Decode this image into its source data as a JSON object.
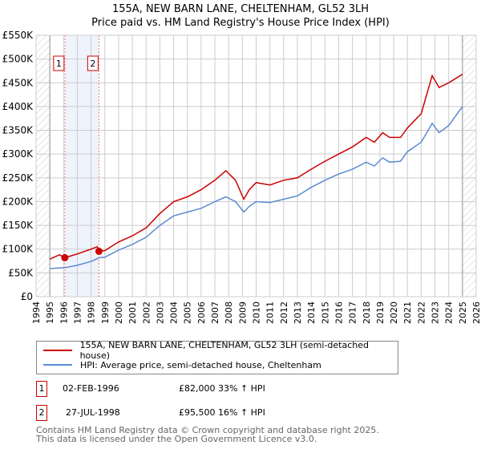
{
  "title": "155A, NEW BARN LANE, CHELTENHAM, GL52 3LH",
  "subtitle": "Price paid vs. HM Land Registry's House Price Index (HPI)",
  "colors": {
    "red": "#cc0000",
    "blue": "#5b8bd0"
  },
  "chart_data": {
    "type": "line",
    "title": "155A, NEW BARN LANE, CHELTENHAM, GL52 3LH — Price paid vs. HM Land Registry's House Price Index (HPI)",
    "xlim": [
      1994,
      2026
    ],
    "ylim": [
      0,
      550000
    ],
    "xticks": [
      "1994",
      "1995",
      "1996",
      "1997",
      "1998",
      "1999",
      "2000",
      "2001",
      "2002",
      "2003",
      "2004",
      "2005",
      "2006",
      "2007",
      "2008",
      "2009",
      "2010",
      "2011",
      "2012",
      "2013",
      "2014",
      "2015",
      "2016",
      "2017",
      "2018",
      "2019",
      "2020",
      "2021",
      "2022",
      "2023",
      "2024",
      "2025",
      "2026"
    ],
    "yticks": [
      {
        "v": 0,
        "label": "£0"
      },
      {
        "v": 50000,
        "label": "£50K"
      },
      {
        "v": 100000,
        "label": "£100K"
      },
      {
        "v": 150000,
        "label": "£150K"
      },
      {
        "v": 200000,
        "label": "£200K"
      },
      {
        "v": 250000,
        "label": "£250K"
      },
      {
        "v": 300000,
        "label": "£300K"
      },
      {
        "v": 350000,
        "label": "£350K"
      },
      {
        "v": 400000,
        "label": "£400K"
      },
      {
        "v": 450000,
        "label": "£450K"
      },
      {
        "v": 500000,
        "label": "£500K"
      },
      {
        "v": 550000,
        "label": "£550K"
      }
    ],
    "series": [
      {
        "name": "155A, NEW BARN LANE, CHELTENHAM, GL52 3LH (semi-detached house)",
        "color": "#cc0000",
        "x": [
          1995,
          1995.7,
          1996.1,
          1997,
          1998,
          1998.45,
          1998.57,
          1999,
          2000,
          2001,
          2002,
          2003,
          2004,
          2005,
          2006,
          2007,
          2007.8,
          2008.5,
          2009.1,
          2009.5,
          2010,
          2011,
          2012,
          2013,
          2014,
          2015,
          2016,
          2017,
          2018,
          2018.6,
          2019.2,
          2019.7,
          2020.5,
          2021,
          2021.5,
          2022,
          2022.8,
          2023.3,
          2024,
          2025
        ],
        "y": [
          79000,
          88000,
          82000,
          90000,
          100000,
          105000,
          95500,
          97000,
          115000,
          128000,
          145000,
          175000,
          200000,
          210000,
          225000,
          245000,
          265000,
          245000,
          205000,
          225000,
          240000,
          235000,
          245000,
          250000,
          268000,
          285000,
          300000,
          315000,
          335000,
          325000,
          345000,
          335000,
          335000,
          355000,
          370000,
          385000,
          465000,
          440000,
          450000,
          468000
        ]
      },
      {
        "name": "HPI: Average price, semi-detached house, Cheltenham",
        "color": "#5b8bd0",
        "x": [
          1995,
          1996.1,
          1997,
          1998,
          1998.6,
          1999,
          2000,
          2001,
          2002,
          2003,
          2004,
          2005,
          2006,
          2007,
          2007.8,
          2008.5,
          2009.1,
          2009.5,
          2010,
          2011,
          2012,
          2013,
          2014,
          2015,
          2016,
          2017,
          2018,
          2018.6,
          2019.2,
          2019.7,
          2020.5,
          2021,
          2021.5,
          2022,
          2022.8,
          2023.3,
          2024,
          2025
        ],
        "y": [
          59000,
          61000,
          66000,
          74000,
          82000,
          83000,
          98000,
          110000,
          125000,
          150000,
          170000,
          178000,
          186000,
          200000,
          210000,
          200000,
          178000,
          190000,
          200000,
          198000,
          205000,
          212000,
          230000,
          245000,
          258000,
          268000,
          283000,
          275000,
          292000,
          283000,
          285000,
          305000,
          315000,
          325000,
          365000,
          345000,
          360000,
          400000
        ]
      }
    ],
    "sales": [
      {
        "label": "1",
        "x": 1996.09,
        "y": 82000
      },
      {
        "label": "2",
        "x": 1998.57,
        "y": 95500
      }
    ],
    "data_range": [
      1995,
      2025
    ]
  },
  "legend": {
    "red_label": "155A, NEW BARN LANE, CHELTENHAM, GL52 3LH (semi-detached house)",
    "blue_label": "HPI: Average price, semi-detached house, Cheltenham"
  },
  "transactions": [
    {
      "num": "1",
      "date": "02-FEB-1996",
      "price": "£82,000",
      "hpi": "33% ↑ HPI"
    },
    {
      "num": "2",
      "date": "27-JUL-1998",
      "price": "£95,500",
      "hpi": "16% ↑ HPI"
    }
  ],
  "footer": {
    "line1": "Contains HM Land Registry data © Crown copyright and database right 2025.",
    "line2": "This data is licensed under the Open Government Licence v3.0."
  }
}
